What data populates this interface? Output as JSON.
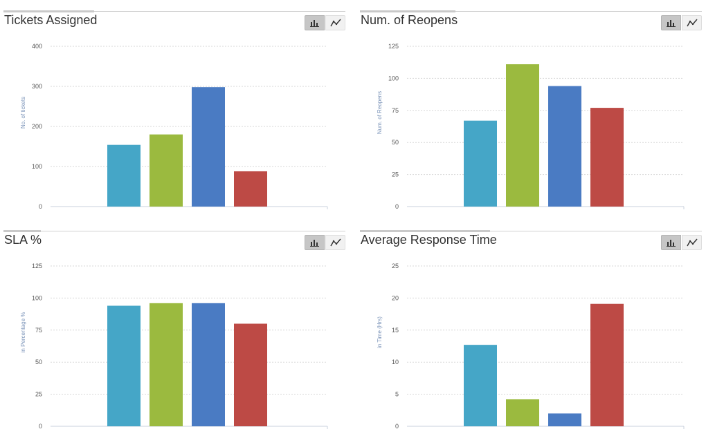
{
  "colors": {
    "series": [
      "#45a6c7",
      "#9bba3f",
      "#4a7bc3",
      "#bd4a45"
    ],
    "axis_label": "#7a93b8",
    "tick_label": "#555555",
    "grid": "#d7d7d7"
  },
  "icons": {
    "bar": "bar-chart-icon",
    "line": "line-chart-icon"
  },
  "charts": [
    {
      "title": "Tickets Assigned",
      "chart_data": {
        "type": "bar",
        "categories": [
          "",
          "",
          "",
          ""
        ],
        "values": [
          154,
          180,
          298,
          88
        ],
        "ylabel": "No. of tickets",
        "ylim": [
          0,
          400
        ],
        "yticks": [
          "0",
          "100",
          "200",
          "300",
          "400"
        ],
        "grid": true
      }
    },
    {
      "title": "Num. of Reopens",
      "chart_data": {
        "type": "bar",
        "categories": [
          "",
          "",
          "",
          ""
        ],
        "values": [
          67,
          111,
          94,
          77
        ],
        "ylabel": "Num. of Reopens",
        "ylim": [
          0,
          125
        ],
        "yticks": [
          "0",
          "25",
          "50",
          "75",
          "100",
          "125"
        ],
        "grid": true
      }
    },
    {
      "title": "SLA %",
      "chart_data": {
        "type": "bar",
        "categories": [
          "",
          "",
          "",
          ""
        ],
        "values": [
          94,
          96,
          96,
          80
        ],
        "ylabel": "in Percentage %",
        "ylim": [
          0,
          125
        ],
        "yticks": [
          "0",
          "25",
          "50",
          "75",
          "100",
          "125"
        ],
        "grid": true
      }
    },
    {
      "title": "Average Response Time",
      "chart_data": {
        "type": "bar",
        "categories": [
          "",
          "",
          "",
          ""
        ],
        "values": [
          12.7,
          4.2,
          2.0,
          19.1
        ],
        "ylabel": "in Time (Hrs)",
        "ylim": [
          0,
          25
        ],
        "yticks": [
          "0",
          "5",
          "10",
          "15",
          "20",
          "25"
        ],
        "grid": true
      }
    }
  ]
}
